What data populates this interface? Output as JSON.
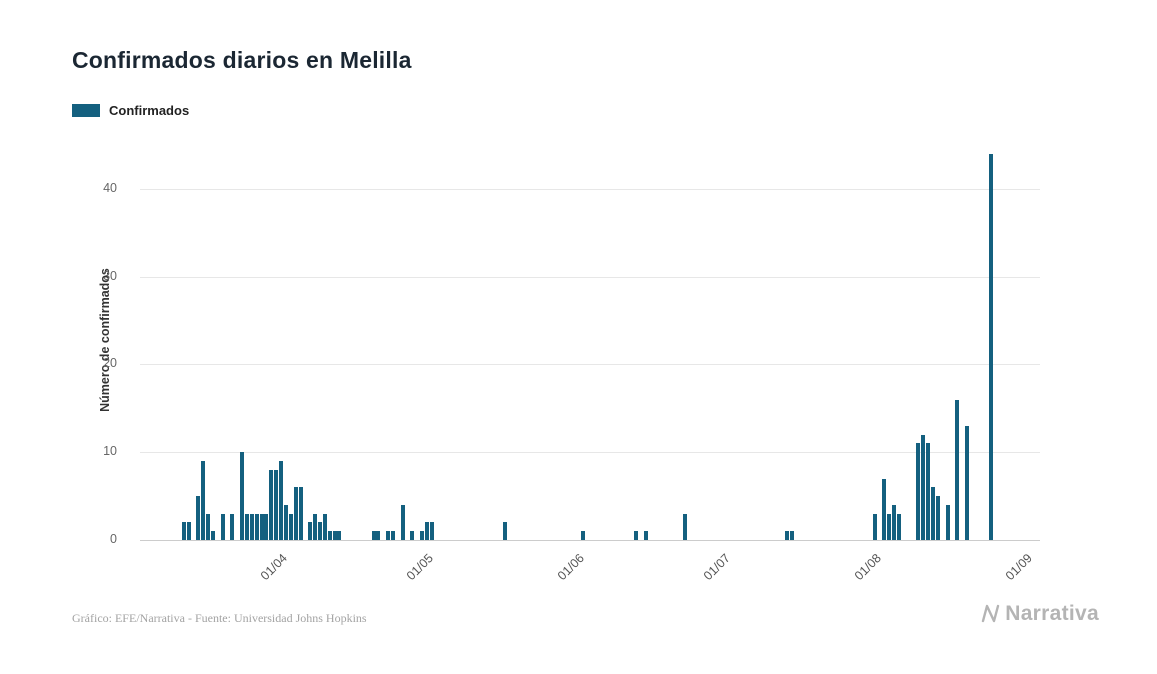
{
  "footer": {
    "credit": "Gráfico: EFE/Narrativa - Fuente: Universidad Johns Hopkins"
  },
  "logo": {
    "text": "Narrativa"
  },
  "chart_data": {
    "type": "bar",
    "title": "Confirmados diarios en Melilla",
    "series_name": "Confirmados",
    "ylabel": "Número de confirmados",
    "xlabel": "",
    "color": "#14607f",
    "grid": true,
    "legend_position": "top-left",
    "ylim": [
      0,
      45
    ],
    "y_ticks": [
      0,
      10,
      20,
      30,
      40
    ],
    "x_range": [
      "2020-03-04",
      "2020-09-05"
    ],
    "x_ticks": [
      {
        "label": "01/04",
        "date": "2020-04-01"
      },
      {
        "label": "01/05",
        "date": "2020-05-01"
      },
      {
        "label": "01/06",
        "date": "2020-06-01"
      },
      {
        "label": "01/07",
        "date": "2020-07-01"
      },
      {
        "label": "01/08",
        "date": "2020-08-01"
      },
      {
        "label": "01/09",
        "date": "2020-09-01"
      }
    ],
    "points": [
      [
        "2020-03-13",
        2
      ],
      [
        "2020-03-14",
        2
      ],
      [
        "2020-03-16",
        5
      ],
      [
        "2020-03-17",
        9
      ],
      [
        "2020-03-18",
        3
      ],
      [
        "2020-03-19",
        1
      ],
      [
        "2020-03-21",
        3
      ],
      [
        "2020-03-23",
        3
      ],
      [
        "2020-03-25",
        10
      ],
      [
        "2020-03-26",
        3
      ],
      [
        "2020-03-27",
        3
      ],
      [
        "2020-03-28",
        3
      ],
      [
        "2020-03-29",
        3
      ],
      [
        "2020-03-30",
        3
      ],
      [
        "2020-03-31",
        8
      ],
      [
        "2020-04-01",
        8
      ],
      [
        "2020-04-02",
        9
      ],
      [
        "2020-04-03",
        4
      ],
      [
        "2020-04-04",
        3
      ],
      [
        "2020-04-05",
        6
      ],
      [
        "2020-04-06",
        6
      ],
      [
        "2020-04-08",
        2
      ],
      [
        "2020-04-09",
        3
      ],
      [
        "2020-04-10",
        2
      ],
      [
        "2020-04-11",
        3
      ],
      [
        "2020-04-12",
        1
      ],
      [
        "2020-04-13",
        1
      ],
      [
        "2020-04-14",
        1
      ],
      [
        "2020-04-21",
        1
      ],
      [
        "2020-04-22",
        1
      ],
      [
        "2020-04-24",
        1
      ],
      [
        "2020-04-25",
        1
      ],
      [
        "2020-04-27",
        4
      ],
      [
        "2020-04-29",
        1
      ],
      [
        "2020-05-01",
        1
      ],
      [
        "2020-05-02",
        2
      ],
      [
        "2020-05-03",
        2
      ],
      [
        "2020-05-18",
        2
      ],
      [
        "2020-06-03",
        1
      ],
      [
        "2020-06-14",
        1
      ],
      [
        "2020-06-16",
        1
      ],
      [
        "2020-06-24",
        3
      ],
      [
        "2020-07-15",
        1
      ],
      [
        "2020-07-16",
        1
      ],
      [
        "2020-08-02",
        3
      ],
      [
        "2020-08-04",
        7
      ],
      [
        "2020-08-05",
        3
      ],
      [
        "2020-08-06",
        4
      ],
      [
        "2020-08-07",
        3
      ],
      [
        "2020-08-11",
        11
      ],
      [
        "2020-08-12",
        12
      ],
      [
        "2020-08-13",
        11
      ],
      [
        "2020-08-14",
        6
      ],
      [
        "2020-08-15",
        5
      ],
      [
        "2020-08-17",
        4
      ],
      [
        "2020-08-19",
        16
      ],
      [
        "2020-08-21",
        13
      ],
      [
        "2020-08-26",
        44
      ]
    ]
  }
}
